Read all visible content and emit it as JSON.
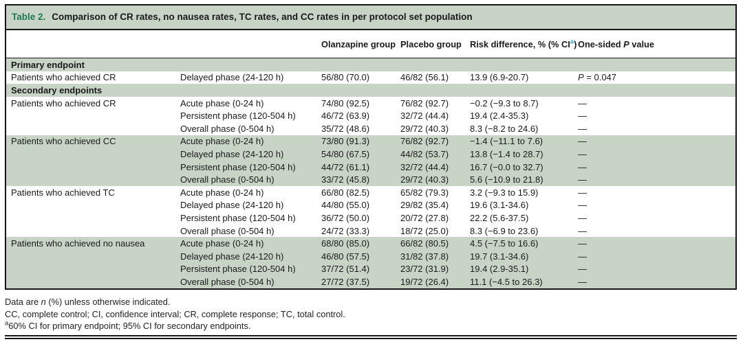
{
  "colors": {
    "band_green": "#c7d4c6",
    "title_green": "#1e7a4e",
    "superscript_teal": "#3aa4c6",
    "border_black": "#161616"
  },
  "table": {
    "title_label": "Table 2.",
    "title_text": "Comparison of CR rates, no nausea rates, TC rates, and CC rates in per protocol set population",
    "headers": {
      "olanzapine": "Olanzapine group",
      "placebo": "Placebo group",
      "risk_prefix": "Risk difference, % (% CI",
      "risk_sup": "a",
      "risk_suffix": ")",
      "p_prefix": "One-sided ",
      "p_italic": "P",
      "p_suffix": " value"
    },
    "sections": [
      {
        "header": "Primary endpoint",
        "groups": [
          {
            "endpoint": "Patients who achieved CR",
            "rows": [
              {
                "phase": "Delayed phase (24-120 h)",
                "olanzapine": "56/80 (70.0)",
                "placebo": "46/82 (56.1)",
                "risk_difference": "13.9 (6.9-20.7)",
                "p_value": "P = 0.047"
              }
            ]
          }
        ]
      },
      {
        "header": "Secondary endpoints",
        "groups": [
          {
            "endpoint": "Patients who achieved CR",
            "rows": [
              {
                "phase": "Acute phase (0-24 h)",
                "olanzapine": "74/80 (92.5)",
                "placebo": "76/82 (92.7)",
                "risk_difference": "−0.2 (−9.3 to 8.7)",
                "p_value": "—"
              },
              {
                "phase": "Persistent phase (120-504 h)",
                "olanzapine": "46/72 (63.9)",
                "placebo": "32/72 (44.4)",
                "risk_difference": "19.4 (2.4-35.3)",
                "p_value": "—"
              },
              {
                "phase": "Overall phase (0-504 h)",
                "olanzapine": "35/72 (48.6)",
                "placebo": "29/72 (40.3)",
                "risk_difference": "8.3 (−8.2 to 24.6)",
                "p_value": "—"
              }
            ]
          },
          {
            "endpoint": "Patients who achieved CC",
            "rows": [
              {
                "phase": "Acute phase (0-24 h)",
                "olanzapine": "73/80 (91.3)",
                "placebo": "76/82 (92.7)",
                "risk_difference": "−1.4 (−11.1 to 7.6)",
                "p_value": "—"
              },
              {
                "phase": "Delayed phase (24-120 h)",
                "olanzapine": "54/80 (67.5)",
                "placebo": "44/82 (53.7)",
                "risk_difference": "13.8 (−1.4 to 28.7)",
                "p_value": "—"
              },
              {
                "phase": "Persistent phase (120-504 h)",
                "olanzapine": "44/72 (61.1)",
                "placebo": "32/72 (44.4)",
                "risk_difference": "16.7 (−0.0 to 32.7)",
                "p_value": "—"
              },
              {
                "phase": "Overall phase (0-504 h)",
                "olanzapine": "33/72 (45.8)",
                "placebo": "29/72 (40.3)",
                "risk_difference": "5.6 (−10.9 to 21.8)",
                "p_value": "—"
              }
            ]
          },
          {
            "endpoint": "Patients who achieved TC",
            "rows": [
              {
                "phase": "Acute phase (0-24 h)",
                "olanzapine": "66/80 (82.5)",
                "placebo": "65/82 (79.3)",
                "risk_difference": "3.2 (−9.3 to 15.9)",
                "p_value": "—"
              },
              {
                "phase": "Delayed phase (24-120 h)",
                "olanzapine": "44/80 (55.0)",
                "placebo": "29/82 (35.4)",
                "risk_difference": "19.6 (3.1-34.6)",
                "p_value": "—"
              },
              {
                "phase": "Persistent phase (120-504 h)",
                "olanzapine": "36/72 (50.0)",
                "placebo": "20/72 (27.8)",
                "risk_difference": "22.2 (5.6-37.5)",
                "p_value": "—"
              },
              {
                "phase": "Overall phase (0-504 h)",
                "olanzapine": "24/72 (33.3)",
                "placebo": "18/72 (25.0)",
                "risk_difference": "8.3 (−6.9 to 23.6)",
                "p_value": "—"
              }
            ]
          },
          {
            "endpoint": "Patients who achieved no nausea",
            "rows": [
              {
                "phase": "Acute phase (0-24 h)",
                "olanzapine": "68/80 (85.0)",
                "placebo": "66/82 (80.5)",
                "risk_difference": "4.5 (−7.5 to 16.6)",
                "p_value": "—"
              },
              {
                "phase": "Delayed phase (24-120 h)",
                "olanzapine": "46/80 (57.5)",
                "placebo": "31/82 (37.8)",
                "risk_difference": "19.7 (3.1-34.6)",
                "p_value": "—"
              },
              {
                "phase": "Persistent phase (120-504 h)",
                "olanzapine": "37/72 (51.4)",
                "placebo": "23/72 (31.9)",
                "risk_difference": "19.4 (2.9-35.1)",
                "p_value": "—"
              },
              {
                "phase": "Overall phase (0-504 h)",
                "olanzapine": "27/72 (37.5)",
                "placebo": "19/72 (26.4)",
                "risk_difference": "11.1 (−4.5 to 26.3)",
                "p_value": "—"
              }
            ]
          }
        ]
      }
    ]
  },
  "footnotes": {
    "line1_prefix": "Data are ",
    "line1_italic": "n",
    "line1_suffix": " (%) unless otherwise indicated.",
    "line2": "CC, complete control; CI, confidence interval; CR, complete response; TC, total control.",
    "line3_sup": "a",
    "line3_text": "60% CI for primary endpoint; 95% CI for secondary endpoints."
  }
}
